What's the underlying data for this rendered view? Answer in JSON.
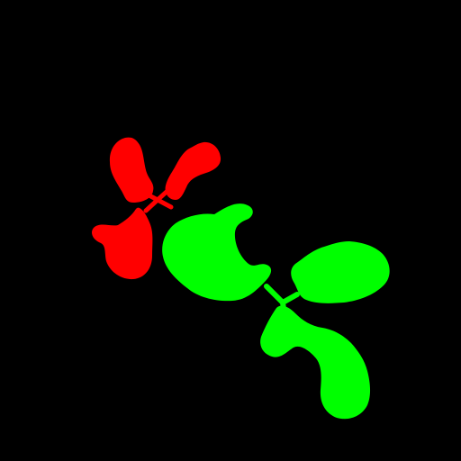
{
  "background_color": "#000000",
  "plants": [
    {
      "name": "plant-red",
      "color": "#ff0000",
      "parts": [
        "leaf-upper-left",
        "leaf-upper-right",
        "leaf-lower",
        "stem"
      ]
    },
    {
      "name": "plant-green",
      "color": "#00ff00",
      "parts": [
        "leaf-left",
        "leaf-right",
        "leaf-lower",
        "stem"
      ]
    }
  ]
}
